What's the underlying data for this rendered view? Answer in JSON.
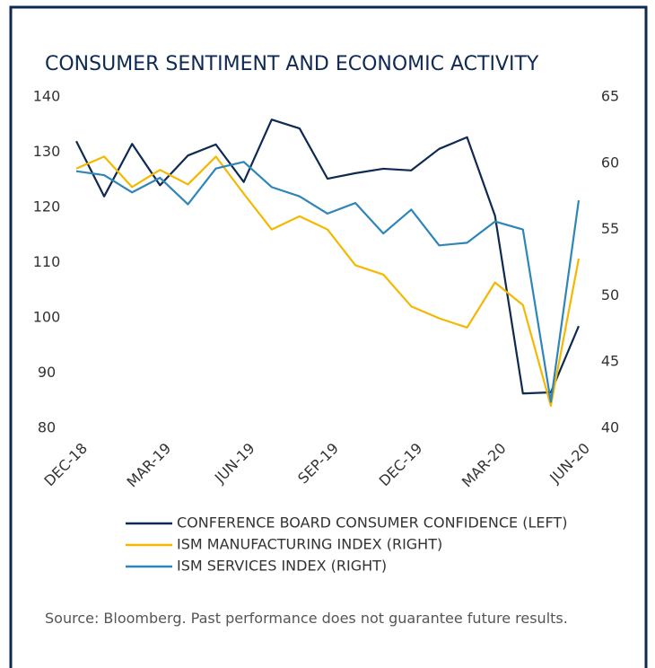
{
  "chart_data": {
    "type": "line",
    "title": "CONSUMER SENTIMENT AND ECONOMIC ACTIVITY",
    "categories": [
      "DEC-18",
      null,
      null,
      "MAR-19",
      null,
      null,
      "JUN-19",
      null,
      null,
      "SEP-19",
      null,
      null,
      "DEC-19",
      null,
      null,
      "MAR-20",
      null,
      null,
      "JUN-20"
    ],
    "series": [
      {
        "name": "CONFERENCE BOARD CONSUMER CONFIDENCE (LEFT)",
        "color": "#0f2a52",
        "values": [
          132,
          122,
          131.5,
          124,
          129.4,
          131.4,
          124.6,
          135.9,
          134.3,
          125.2,
          126.2,
          127,
          126.7,
          130.6,
          132.7,
          118.5,
          86.3,
          86.5,
          98.5
        ]
      },
      {
        "name": "ISM MANUFACTURING INDEX (RIGHT)",
        "color": "#f5b800",
        "axis": "y2",
        "values": [
          59.6,
          60.5,
          58.2,
          59.5,
          58.4,
          60.5,
          57.7,
          55,
          56,
          55,
          52.3,
          51.6,
          49.2,
          48.3,
          47.6,
          51,
          49.3,
          41.7,
          52.8
        ]
      },
      {
        "name": "ISM SERVICES INDEX (RIGHT)",
        "color": "#2e86b8",
        "axis": "y2",
        "values": [
          59.4,
          59.1,
          57.8,
          58.9,
          56.9,
          59.6,
          60.1,
          58.2,
          57.5,
          56.2,
          57,
          54.7,
          56.5,
          53.8,
          54,
          55.6,
          55,
          42,
          57.2
        ]
      }
    ],
    "ylim": [
      80,
      140
    ],
    "yticks": [
      80,
      90,
      100,
      110,
      120,
      130,
      140
    ],
    "y2lim": [
      40,
      65
    ],
    "y2ticks": [
      40,
      45,
      50,
      55,
      60,
      65
    ],
    "legend": "bottom",
    "source": "Source: Bloomberg. Past performance does not guarantee future results."
  }
}
